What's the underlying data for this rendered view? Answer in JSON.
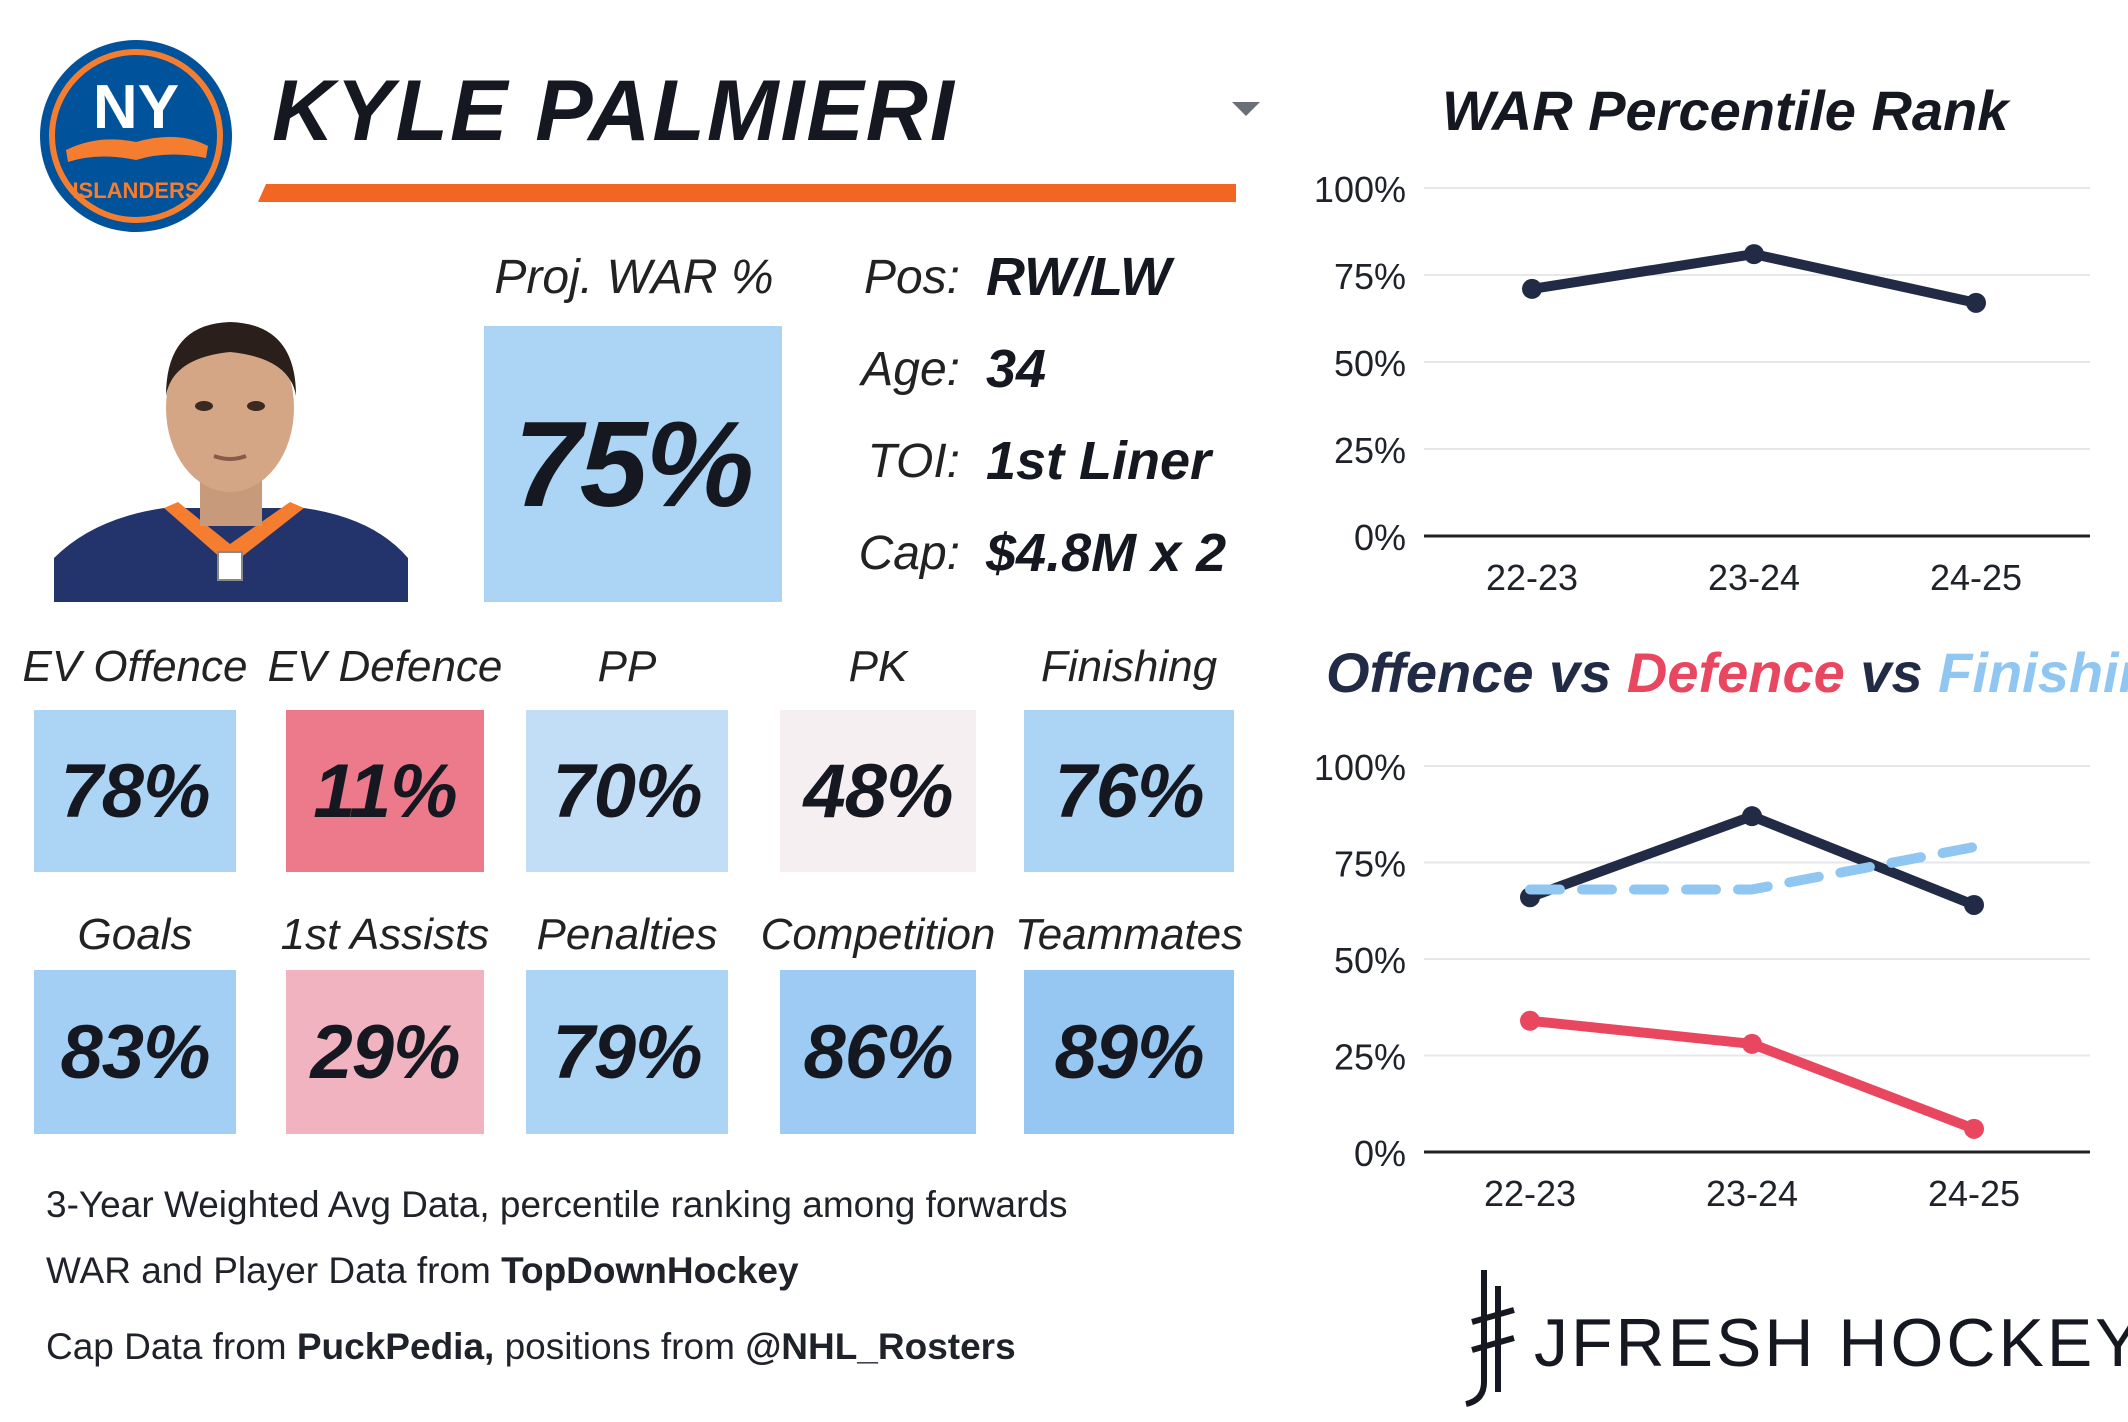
{
  "player": {
    "name": "KYLE PALMIERI",
    "team_logo": {
      "wordmark_top": "NY",
      "wordmark_bottom": "ISLANDERS"
    },
    "proj_war": {
      "label": "Proj. WAR %",
      "value": "75%"
    },
    "info": [
      {
        "label": "Pos:",
        "value": "RW/LW"
      },
      {
        "label": "Age:",
        "value": "34"
      },
      {
        "label": "TOI:",
        "value": "1st Liner"
      },
      {
        "label": "Cap:",
        "value": "$4.8M x 2"
      }
    ]
  },
  "stats": [
    {
      "label": "EV Offence",
      "value": "78%",
      "color": "#abd4f5"
    },
    {
      "label": "EV Defence",
      "value": "11%",
      "color": "#ec7a8a"
    },
    {
      "label": "PP",
      "value": "70%",
      "color": "#c1def6"
    },
    {
      "label": "PK",
      "value": "48%",
      "color": "#f6eff1"
    },
    {
      "label": "Finishing",
      "value": "76%",
      "color": "#abd4f5"
    },
    {
      "label": "Goals",
      "value": "83%",
      "color": "#a3cff4"
    },
    {
      "label": "1st Assists",
      "value": "29%",
      "color": "#f0b3bf"
    },
    {
      "label": "Penalties",
      "value": "79%",
      "color": "#abd4f5"
    },
    {
      "label": "Competition",
      "value": "86%",
      "color": "#9dcbf3"
    },
    {
      "label": "Teammates",
      "value": "89%",
      "color": "#95c7f2"
    }
  ],
  "footnotes": {
    "line1": "3-Year Weighted Avg Data, percentile ranking among forwards",
    "line2_prefix": "WAR and Player Data from ",
    "line2_bold": "TopDownHockey",
    "line3_prefix": "Cap Data from ",
    "line3_bold1": "PuckPedia,",
    "line3_mid": " positions from ",
    "line3_bold2": "@NHL_Rosters"
  },
  "brand": {
    "name": "JFRESH HOCKEY"
  },
  "colors": {
    "navy": "#222b45",
    "red": "#e8475f",
    "lightblue": "#8fc6f2",
    "orange": "#f26522"
  },
  "chart_data": [
    {
      "type": "line",
      "title": "WAR Percentile Rank",
      "categories": [
        "22-23",
        "23-24",
        "24-25"
      ],
      "ylim": [
        0,
        100
      ],
      "yticks": [
        "0%",
        "25%",
        "50%",
        "75%",
        "100%"
      ],
      "grid": true,
      "series": [
        {
          "values": [
            71,
            81,
            67
          ],
          "color": "#222b45",
          "style": "solid"
        }
      ]
    },
    {
      "type": "line",
      "title_parts": [
        "Offence",
        " vs ",
        "Defence",
        " vs ",
        "Finishing"
      ],
      "categories": [
        "22-23",
        "23-24",
        "24-25"
      ],
      "ylim": [
        0,
        100
      ],
      "yticks": [
        "0%",
        "25%",
        "50%",
        "75%",
        "100%"
      ],
      "grid": true,
      "series": [
        {
          "name": "Offence",
          "values": [
            66,
            87,
            64
          ],
          "color": "#222b45",
          "style": "solid"
        },
        {
          "name": "Defence",
          "values": [
            34,
            28,
            6
          ],
          "color": "#e8475f",
          "style": "solid"
        },
        {
          "name": "Finishing",
          "values": [
            68,
            68,
            79
          ],
          "color": "#8fc6f2",
          "style": "dashed"
        }
      ]
    }
  ]
}
